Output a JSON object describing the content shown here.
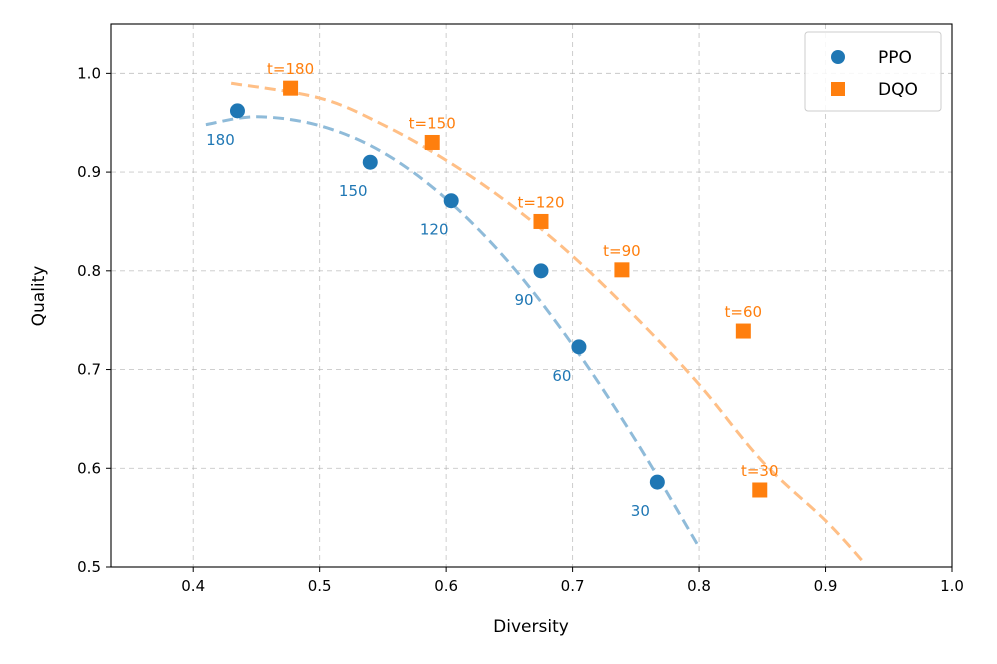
{
  "chart_data": {
    "type": "scatter",
    "title": "",
    "xlabel": "Diversity",
    "ylabel": "Quality",
    "xlim": [
      0.335,
      1.0
    ],
    "ylim": [
      0.5,
      1.05
    ],
    "xticks": [
      "0.4",
      "0.5",
      "0.6",
      "0.7",
      "0.8",
      "0.9",
      "1.0"
    ],
    "yticks": [
      "0.5",
      "0.6",
      "0.7",
      "0.8",
      "0.9",
      "1.0"
    ],
    "grid": true,
    "legend_position": "top-right",
    "series": [
      {
        "name": "PPO",
        "marker": "circle",
        "color": "#1f77b4",
        "points": [
          {
            "x": 0.435,
            "y": 0.962,
            "label": "180"
          },
          {
            "x": 0.54,
            "y": 0.91,
            "label": "150"
          },
          {
            "x": 0.604,
            "y": 0.871,
            "label": "120"
          },
          {
            "x": 0.675,
            "y": 0.8,
            "label": "90"
          },
          {
            "x": 0.705,
            "y": 0.723,
            "label": "60"
          },
          {
            "x": 0.767,
            "y": 0.586,
            "label": "30"
          }
        ],
        "fit": {
          "style": "dashed",
          "x_range": [
            0.41,
            0.8
          ],
          "color": "#8fbbd9",
          "knots": [
            [
              0.41,
              0.948
            ],
            [
              0.45,
              0.956
            ],
            [
              0.5,
              0.947
            ],
            [
              0.55,
              0.92
            ],
            [
              0.6,
              0.873
            ],
            [
              0.65,
              0.808
            ],
            [
              0.7,
              0.725
            ],
            [
              0.75,
              0.628
            ],
            [
              0.8,
              0.52
            ]
          ]
        }
      },
      {
        "name": "DQO",
        "marker": "square",
        "color": "#ff7f0e",
        "points": [
          {
            "x": 0.477,
            "y": 0.985,
            "label": "t=180"
          },
          {
            "x": 0.589,
            "y": 0.93,
            "label": "t=150"
          },
          {
            "x": 0.675,
            "y": 0.85,
            "label": "t=120"
          },
          {
            "x": 0.739,
            "y": 0.801,
            "label": "t=90"
          },
          {
            "x": 0.835,
            "y": 0.739,
            "label": "t=60"
          },
          {
            "x": 0.848,
            "y": 0.578,
            "label": "t=30"
          }
        ],
        "fit": {
          "style": "dashed",
          "x_range": [
            0.43,
            0.93
          ],
          "color": "#ffbf86",
          "knots": [
            [
              0.43,
              0.99
            ],
            [
              0.5,
              0.975
            ],
            [
              0.55,
              0.948
            ],
            [
              0.6,
              0.912
            ],
            [
              0.65,
              0.868
            ],
            [
              0.7,
              0.815
            ],
            [
              0.75,
              0.753
            ],
            [
              0.8,
              0.685
            ],
            [
              0.85,
              0.607
            ],
            [
              0.9,
              0.547
            ],
            [
              0.93,
              0.505
            ]
          ]
        }
      }
    ]
  }
}
